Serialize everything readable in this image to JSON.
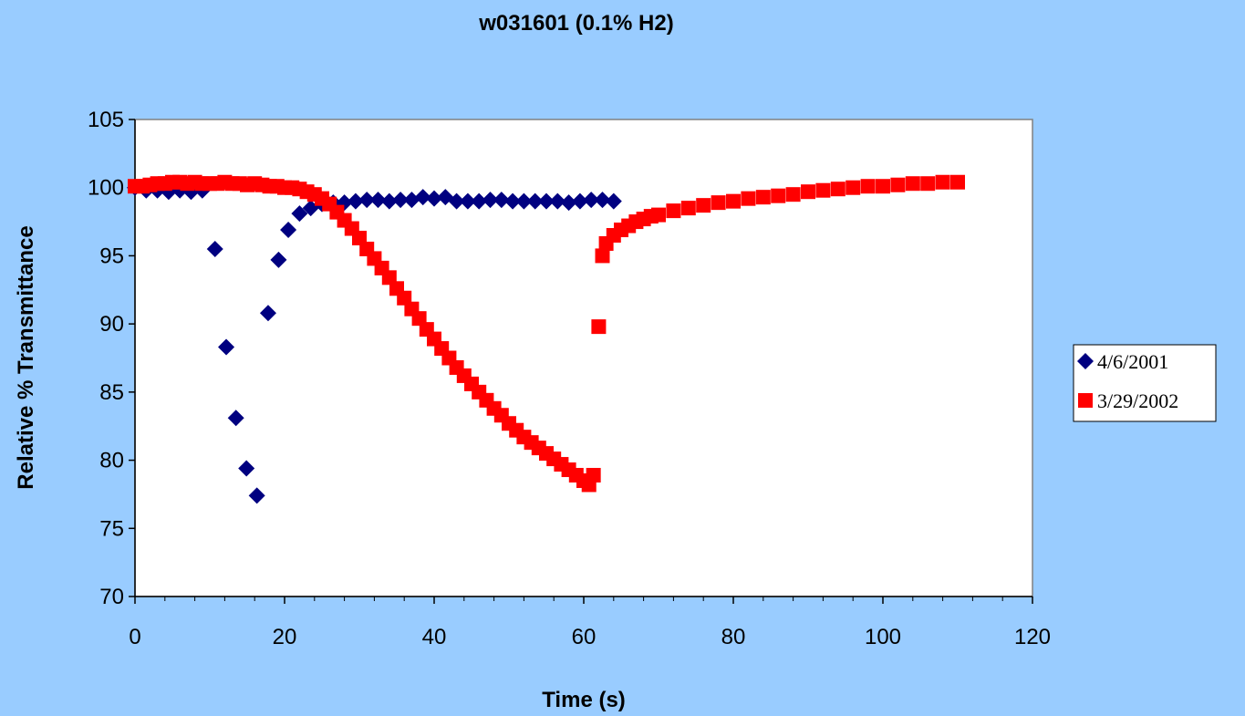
{
  "chart_data": {
    "type": "scatter",
    "title": "w031601 (0.1% H2)",
    "xlabel": "Time (s)",
    "ylabel": "Relative % Transmittance",
    "xlim": [
      0,
      120
    ],
    "ylim": [
      70,
      105
    ],
    "xticks": [
      "0",
      "20",
      "40",
      "60",
      "80",
      "100",
      "120"
    ],
    "yticks": [
      "70",
      "75",
      "80",
      "85",
      "90",
      "95",
      "100",
      "105"
    ],
    "grid": false,
    "legend_position": "right",
    "series": [
      {
        "name": "4/6/2001",
        "marker": "diamond",
        "color": "#000080",
        "points": [
          [
            0,
            100.0
          ],
          [
            1.5,
            99.8
          ],
          [
            3,
            99.8
          ],
          [
            4.5,
            99.7
          ],
          [
            6,
            99.8
          ],
          [
            7.5,
            99.7
          ],
          [
            9,
            99.8
          ],
          [
            10.7,
            95.5
          ],
          [
            12.2,
            88.3
          ],
          [
            13.5,
            83.1
          ],
          [
            14.9,
            79.4
          ],
          [
            16.3,
            77.4
          ],
          [
            17.8,
            90.8
          ],
          [
            19.2,
            94.7
          ],
          [
            20.5,
            96.9
          ],
          [
            22,
            98.1
          ],
          [
            23.5,
            98.5
          ],
          [
            25,
            98.8
          ],
          [
            26.5,
            98.9
          ],
          [
            28,
            98.9
          ],
          [
            29.5,
            99.0
          ],
          [
            31,
            99.1
          ],
          [
            32.5,
            99.1
          ],
          [
            34,
            99.0
          ],
          [
            35.5,
            99.1
          ],
          [
            37,
            99.1
          ],
          [
            38.5,
            99.3
          ],
          [
            40,
            99.2
          ],
          [
            41.5,
            99.3
          ],
          [
            43,
            99.0
          ],
          [
            44.5,
            99.0
          ],
          [
            46,
            99.0
          ],
          [
            47.5,
            99.1
          ],
          [
            49,
            99.1
          ],
          [
            50.5,
            99.0
          ],
          [
            52,
            99.0
          ],
          [
            53.5,
            99.0
          ],
          [
            55,
            99.0
          ],
          [
            56.5,
            99.0
          ],
          [
            58,
            98.9
          ],
          [
            59.5,
            99.0
          ],
          [
            61,
            99.1
          ],
          [
            62.5,
            99.1
          ],
          [
            64,
            99.0
          ]
        ]
      },
      {
        "name": "3/29/2002",
        "marker": "square",
        "color": "#ff0000",
        "points": [
          [
            0,
            100.1
          ],
          [
            1,
            100.1
          ],
          [
            2,
            100.2
          ],
          [
            3,
            100.3
          ],
          [
            4,
            100.3
          ],
          [
            5,
            100.4
          ],
          [
            6,
            100.4
          ],
          [
            7,
            100.3
          ],
          [
            8,
            100.4
          ],
          [
            9,
            100.3
          ],
          [
            10,
            100.3
          ],
          [
            11,
            100.3
          ],
          [
            12,
            100.4
          ],
          [
            13,
            100.3
          ],
          [
            14,
            100.3
          ],
          [
            15,
            100.2
          ],
          [
            16,
            100.3
          ],
          [
            17,
            100.2
          ],
          [
            18,
            100.1
          ],
          [
            19,
            100.1
          ],
          [
            20,
            100.0
          ],
          [
            21,
            100.0
          ],
          [
            22,
            99.9
          ],
          [
            23,
            99.7
          ],
          [
            24,
            99.5
          ],
          [
            25,
            99.2
          ],
          [
            26,
            98.8
          ],
          [
            27,
            98.2
          ],
          [
            28,
            97.6
          ],
          [
            29,
            97.0
          ],
          [
            30,
            96.3
          ],
          [
            31,
            95.5
          ],
          [
            32,
            94.8
          ],
          [
            33,
            94.1
          ],
          [
            34,
            93.4
          ],
          [
            35,
            92.6
          ],
          [
            36,
            91.9
          ],
          [
            37,
            91.1
          ],
          [
            38,
            90.4
          ],
          [
            39,
            89.6
          ],
          [
            40,
            88.9
          ],
          [
            41,
            88.2
          ],
          [
            42,
            87.5
          ],
          [
            43,
            86.8
          ],
          [
            44,
            86.2
          ],
          [
            45,
            85.6
          ],
          [
            46,
            85.0
          ],
          [
            47,
            84.4
          ],
          [
            48,
            83.8
          ],
          [
            49,
            83.3
          ],
          [
            50,
            82.7
          ],
          [
            51,
            82.2
          ],
          [
            52,
            81.7
          ],
          [
            53,
            81.3
          ],
          [
            54,
            80.9
          ],
          [
            55,
            80.5
          ],
          [
            56,
            80.1
          ],
          [
            57,
            79.7
          ],
          [
            58,
            79.3
          ],
          [
            59,
            78.9
          ],
          [
            60,
            78.5
          ],
          [
            60.7,
            78.2
          ],
          [
            61.3,
            78.9
          ],
          [
            62,
            89.8
          ],
          [
            62.5,
            95.0
          ],
          [
            63,
            95.9
          ],
          [
            64,
            96.5
          ],
          [
            65,
            96.9
          ],
          [
            66,
            97.2
          ],
          [
            67,
            97.5
          ],
          [
            68,
            97.7
          ],
          [
            69,
            97.9
          ],
          [
            70,
            98.0
          ],
          [
            72,
            98.3
          ],
          [
            74,
            98.5
          ],
          [
            76,
            98.7
          ],
          [
            78,
            98.9
          ],
          [
            80,
            99.0
          ],
          [
            82,
            99.2
          ],
          [
            84,
            99.3
          ],
          [
            86,
            99.4
          ],
          [
            88,
            99.5
          ],
          [
            90,
            99.7
          ],
          [
            92,
            99.8
          ],
          [
            94,
            99.9
          ],
          [
            96,
            100.0
          ],
          [
            98,
            100.1
          ],
          [
            100,
            100.1
          ],
          [
            102,
            100.2
          ],
          [
            104,
            100.3
          ],
          [
            106,
            100.3
          ],
          [
            108,
            100.4
          ],
          [
            110,
            100.4
          ]
        ]
      }
    ]
  }
}
